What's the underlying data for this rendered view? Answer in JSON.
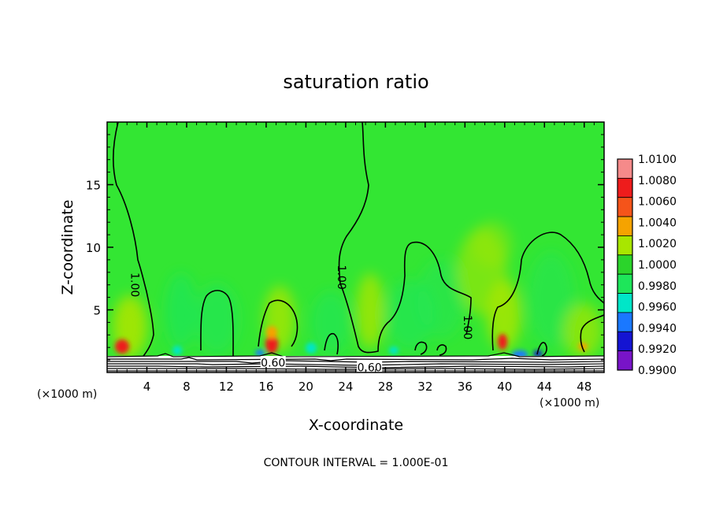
{
  "chart_data": {
    "type": "heatmap",
    "title": "saturation ratio",
    "xlabel": "X-coordinate",
    "ylabel": "Z-coordinate",
    "x_unit_left": "(×1000 m)",
    "x_unit_right": "(×1000 m)",
    "xlim": [
      0,
      50
    ],
    "ylim": [
      0,
      20
    ],
    "x_ticks": [
      4,
      8,
      12,
      16,
      20,
      24,
      28,
      32,
      36,
      40,
      44,
      48
    ],
    "x_tick_labels": [
      "4",
      "8",
      "12",
      "16",
      "20",
      "24",
      "28",
      "32",
      "36",
      "40",
      "44",
      "48"
    ],
    "y_ticks": [
      5,
      10,
      15
    ],
    "y_tick_labels": [
      "5",
      "10",
      "15"
    ],
    "colorbar": {
      "levels": [
        1.01,
        1.008,
        1.006,
        1.004,
        1.002,
        1.0,
        0.998,
        0.996,
        0.994,
        0.992,
        0.99
      ],
      "labels": [
        "1.0100",
        "1.0080",
        "1.0060",
        "1.0040",
        "1.0020",
        "1.0000",
        "0.9980",
        "0.9960",
        "0.9940",
        "0.9920",
        "0.9900"
      ],
      "colors": [
        "#f58a8a",
        "#ee1c1c",
        "#f5541a",
        "#f5a300",
        "#a8e600",
        "#2bd42b",
        "#1ee65a",
        "#00e6c8",
        "#1a78ff",
        "#1414d2",
        "#7814c8"
      ]
    },
    "background_color": "#33e633",
    "contour_labels": [
      {
        "text": "1.00",
        "x": 2.8,
        "z": 7.0
      },
      {
        "text": "1.00",
        "x": 23.6,
        "z": 7.6
      },
      {
        "text": "1.00",
        "x": 36.3,
        "z": 3.6
      },
      {
        "text": "0.60",
        "x": 16.7,
        "z": 0.8
      },
      {
        "text": "0.60",
        "x": 26.4,
        "z": 0.4
      }
    ],
    "contour_interval_text": "CONTOUR INTERVAL = 1.000E-01"
  }
}
